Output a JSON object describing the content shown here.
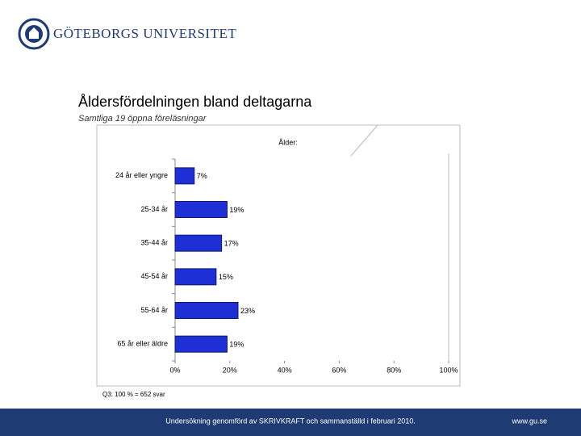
{
  "header": {
    "logo_text": "GÖTEBORGS UNIVERSITET"
  },
  "chart_data": {
    "type": "hbar",
    "title": "Åldersfördelningen bland deltagarna",
    "subtitle": "Samtliga 19 öppna föreläsningar",
    "legend_title": "Ålder:",
    "categories": [
      "24 år eller yngre",
      "25-34 år",
      "35-44 år",
      "45-54 år",
      "55-64 år",
      "65 år eller äldre"
    ],
    "values": [
      7,
      19,
      17,
      15,
      23,
      19
    ],
    "value_labels": [
      "7%",
      "19%",
      "17%",
      "15%",
      "23%",
      "19%"
    ],
    "color": "#1f2fd6",
    "xlim": [
      0,
      100
    ],
    "xticks": [
      {
        "value": 0,
        "label": "0%"
      },
      {
        "value": 20,
        "label": "20%"
      },
      {
        "value": 40,
        "label": "40%"
      },
      {
        "value": 60,
        "label": "60%"
      },
      {
        "value": 80,
        "label": "80%"
      },
      {
        "value": 100,
        "label": "100%"
      }
    ],
    "note": "Q3: 100 % = 652 svar"
  },
  "footer": {
    "text": "Undersökning genomförd av SKRIVKRAFT och sammanställd i februari 2010.",
    "url": "www.gu.se"
  }
}
